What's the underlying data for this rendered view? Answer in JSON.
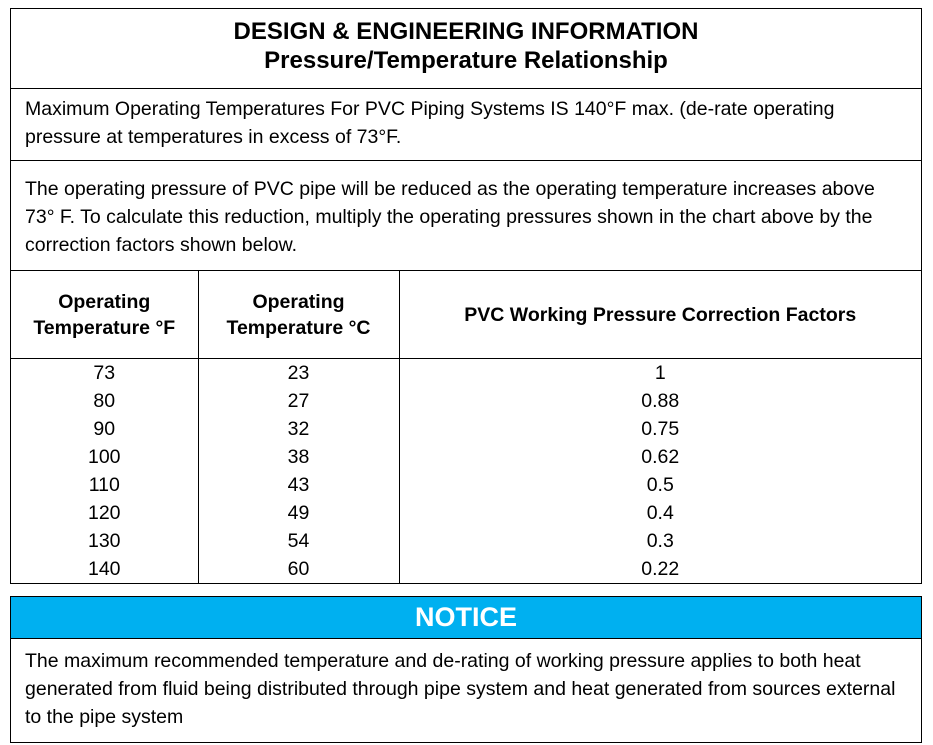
{
  "title": {
    "line1": "DESIGN & ENGINEERING INFORMATION",
    "line2": "Pressure/Temperature Relationship"
  },
  "paragraph1": "Maximum Operating Temperatures For PVC Piping Systems IS 140°F max.  (de-rate operating pressure at temperatures in excess of 73°F.",
  "paragraph2": "The operating pressure of PVC pipe will be reduced as the operating temperature increases above 73° F. To calculate this reduction, multiply the operating pressures shown in the chart above by the correction factors shown below.",
  "table": {
    "headers": {
      "f_line1": "Operating",
      "f_line2": "Temperature °F",
      "c_line1": "Operating",
      "c_line2": "Temperature °C",
      "factor": "PVC Working Pressure Correction Factors"
    },
    "rows": [
      {
        "f": "73",
        "c": "23",
        "factor": "1"
      },
      {
        "f": "80",
        "c": "27",
        "factor": "0.88"
      },
      {
        "f": "90",
        "c": "32",
        "factor": "0.75"
      },
      {
        "f": "100",
        "c": "38",
        "factor": "0.62"
      },
      {
        "f": "110",
        "c": "43",
        "factor": "0.5"
      },
      {
        "f": "120",
        "c": "49",
        "factor": "0.4"
      },
      {
        "f": "130",
        "c": "54",
        "factor": "0.3"
      },
      {
        "f": "140",
        "c": "60",
        "factor": "0.22"
      }
    ]
  },
  "notice": {
    "heading": "NOTICE",
    "heading_color": "#00b0f0",
    "text": "The maximum recommended temperature and de-rating of working pressure applies to both heat generated from fluid being distributed through pipe system and heat generated from sources external to the pipe system"
  }
}
